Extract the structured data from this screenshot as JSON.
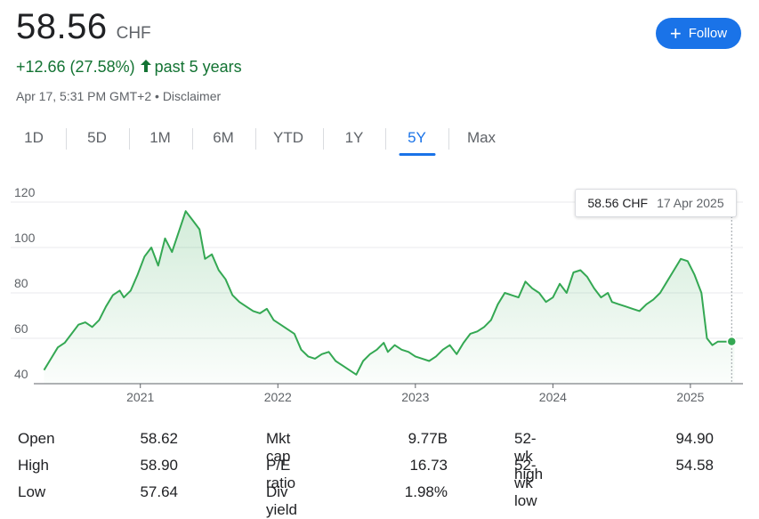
{
  "quote": {
    "price": "58.56",
    "currency": "CHF",
    "change": "+12.66 (27.58%)",
    "period": "past 5 years",
    "timestamp": "Apr 17, 5:31 PM GMT+2",
    "separator": "•",
    "disclaimer": "Disclaimer",
    "up_color": "#137333"
  },
  "follow_button": {
    "label": "Follow",
    "icon": "plus-icon"
  },
  "tabs": [
    "1D",
    "5D",
    "1M",
    "6M",
    "YTD",
    "1Y",
    "5Y",
    "Max"
  ],
  "active_tab": "5Y",
  "tooltip": {
    "price": "58.56 CHF",
    "date": "17 Apr 2025"
  },
  "chart_data": {
    "type": "area",
    "line_color": "#34a853",
    "grid": true,
    "ylim": [
      40,
      120
    ],
    "y_ticks": [
      40,
      60,
      80,
      100,
      120
    ],
    "x_tick_labels": [
      "2021",
      "2022",
      "2023",
      "2024",
      "2025"
    ],
    "x_ticks": [
      2021.0,
      2022.0,
      2023.0,
      2024.0,
      2025.0
    ],
    "xlim": [
      2020.29,
      2025.35
    ],
    "series": [
      {
        "x": [
          2020.3,
          2020.35,
          2020.4,
          2020.45,
          2020.5,
          2020.55,
          2020.6,
          2020.65,
          2020.7,
          2020.75,
          2020.8,
          2020.85,
          2020.88,
          2020.93,
          2020.98,
          2021.03,
          2021.08,
          2021.13,
          2021.18,
          2021.23,
          2021.28,
          2021.33,
          2021.38,
          2021.43,
          2021.47,
          2021.52,
          2021.57,
          2021.62,
          2021.67,
          2021.72,
          2021.77,
          2021.82,
          2021.87,
          2021.92,
          2021.97,
          2022.02,
          2022.07,
          2022.12,
          2022.17,
          2022.22,
          2022.27,
          2022.32,
          2022.37,
          2022.42,
          2022.47,
          2022.52,
          2022.57,
          2022.62,
          2022.67,
          2022.72,
          2022.77,
          2022.8,
          2022.85,
          2022.9,
          2022.95,
          2023.0,
          2023.05,
          2023.1,
          2023.15,
          2023.2,
          2023.25,
          2023.3,
          2023.35,
          2023.4,
          2023.45,
          2023.5,
          2023.55,
          2023.6,
          2023.65,
          2023.7,
          2023.75,
          2023.8,
          2023.85,
          2023.9,
          2023.95,
          2024.0,
          2024.05,
          2024.1,
          2024.15,
          2024.2,
          2024.25,
          2024.3,
          2024.35,
          2024.4,
          2024.43,
          2024.48,
          2024.53,
          2024.58,
          2024.63,
          2024.68,
          2024.73,
          2024.78,
          2024.83,
          2024.88,
          2024.93,
          2024.98,
          2025.03,
          2025.08,
          2025.12,
          2025.16,
          2025.2,
          2025.23,
          2025.26,
          2025.28,
          2025.3,
          2025.32
        ],
        "y": [
          46,
          51,
          56,
          58,
          62,
          66,
          67,
          65,
          68,
          74,
          79,
          81,
          78,
          81,
          88,
          96,
          100,
          92,
          104,
          98,
          107,
          116,
          112,
          108,
          95,
          97,
          90,
          86,
          79,
          76,
          74,
          72,
          71,
          73,
          68,
          66,
          64,
          62,
          55,
          52,
          51,
          53,
          54,
          50,
          48,
          46,
          44,
          50,
          53,
          55,
          58,
          54,
          57,
          55,
          54,
          52,
          51,
          50,
          52,
          55,
          57,
          53,
          58,
          62,
          63,
          65,
          68,
          75,
          80,
          79,
          78,
          85,
          82,
          80,
          76,
          78,
          84,
          80,
          89,
          90,
          87,
          82,
          78,
          80,
          76,
          75,
          74,
          73,
          72,
          75,
          77,
          80,
          85,
          90,
          95,
          94,
          88,
          80,
          60,
          57,
          58.56,
          58.56,
          58.56,
          58.56,
          58.56,
          58.56
        ]
      }
    ],
    "last_point": {
      "x": 2025.3,
      "y": 58.56
    }
  },
  "stats": {
    "columns": [
      [
        {
          "label": "Open",
          "value": "58.62"
        },
        {
          "label": "High",
          "value": "58.90"
        },
        {
          "label": "Low",
          "value": "57.64"
        }
      ],
      [
        {
          "label": "Mkt cap",
          "value": "9.77B"
        },
        {
          "label": "P/E ratio",
          "value": "16.73"
        },
        {
          "label": "Div yield",
          "value": "1.98%"
        }
      ],
      [
        {
          "label": "52-wk high",
          "value": "94.90"
        },
        {
          "label": "52-wk low",
          "value": "54.58"
        }
      ]
    ]
  }
}
